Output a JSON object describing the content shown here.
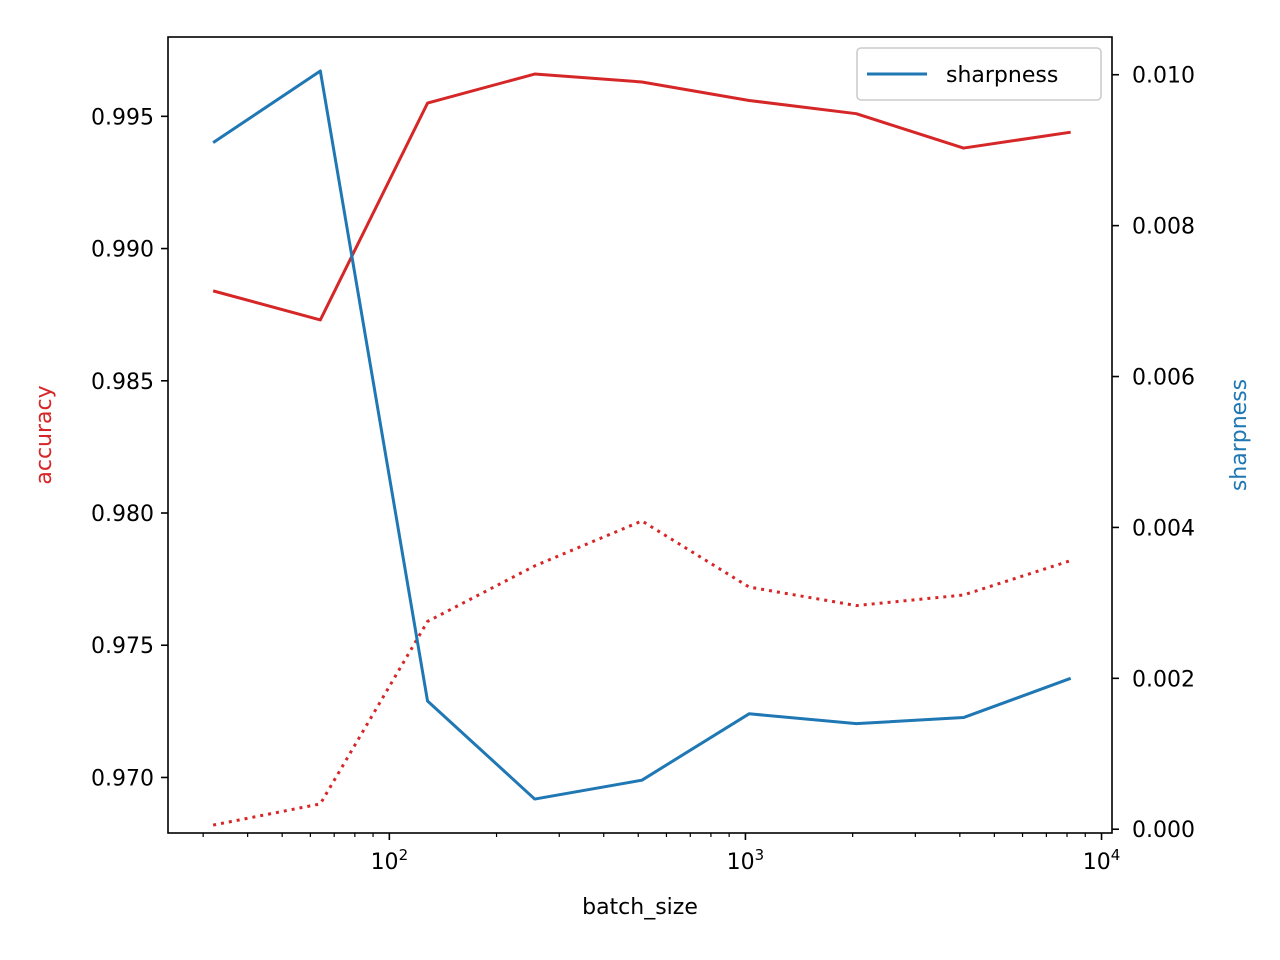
{
  "chart_data": {
    "type": "line",
    "xlabel": "batch_size",
    "xscale": "log",
    "xlim": [
      23.9,
      10700
    ],
    "x": [
      32,
      64,
      128,
      256,
      512,
      1024,
      2048,
      4096,
      8192
    ],
    "x_tick_labels": [
      {
        "value": 100,
        "base": "10",
        "exp": "2"
      },
      {
        "value": 1000,
        "base": "10",
        "exp": "3"
      },
      {
        "value": 10000,
        "base": "10",
        "exp": "4"
      }
    ],
    "left_axis": {
      "label": "accuracy",
      "color": "#d62728",
      "ylim": [
        0.9679,
        0.998
      ],
      "ticks": [
        0.97,
        0.975,
        0.98,
        0.985,
        0.99,
        0.995
      ],
      "tick_labels": [
        "0.970",
        "0.975",
        "0.980",
        "0.985",
        "0.990",
        "0.995"
      ]
    },
    "right_axis": {
      "label": "sharpness",
      "color": "#1f77b4",
      "ylim": [
        -5e-05,
        0.0105
      ],
      "ticks": [
        0.0,
        0.002,
        0.004,
        0.006,
        0.008,
        0.01
      ],
      "tick_labels": [
        "0.000",
        "0.002",
        "0.004",
        "0.006",
        "0.008",
        "0.010"
      ]
    },
    "series": [
      {
        "axis": "left",
        "style": "solid",
        "color": "#d62728",
        "values": [
          0.9884,
          0.9873,
          0.9955,
          0.9966,
          0.9963,
          0.9956,
          0.9951,
          0.9938,
          0.9944
        ]
      },
      {
        "axis": "left",
        "style": "dotted",
        "color": "#d62728",
        "values": [
          0.9682,
          0.969,
          0.9759,
          0.978,
          0.9797,
          0.9772,
          0.9765,
          0.9769,
          0.9782
        ]
      },
      {
        "axis": "right",
        "style": "solid",
        "color": "#1f77b4",
        "name": "sharpness",
        "values": [
          0.0091,
          0.01005,
          0.0017,
          0.0004,
          0.00065,
          0.00153,
          0.0014,
          0.00148,
          0.002
        ]
      }
    ],
    "legend": {
      "position": "top-right",
      "entries": [
        "sharpness"
      ]
    },
    "grid": false
  }
}
